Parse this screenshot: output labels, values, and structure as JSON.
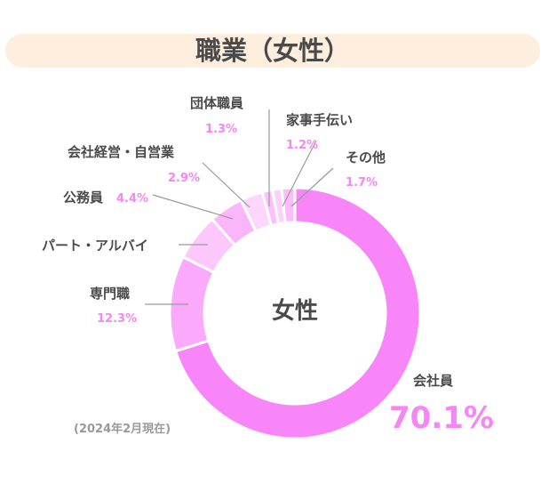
{
  "title": "職業（女性）",
  "center_label": "女性",
  "footnote": "(2024年2月現在)",
  "colors": {
    "title_bg": "#fdeede",
    "text": "#4a4a4a",
    "percent": "#f486f6"
  },
  "chart_data": {
    "type": "pie",
    "title": "職業（女性）",
    "center_label": "女性",
    "segments": [
      {
        "label": "会社員",
        "value": 70.1,
        "value_label": "70.1%",
        "color": "#f986f9"
      },
      {
        "label": "専門職",
        "value": 12.3,
        "value_label": "12.3%",
        "color": "#fbaafb"
      },
      {
        "label": "パート・アルバイ",
        "value": 6.1,
        "value_label": "",
        "color": "#fcc8fc"
      },
      {
        "label": "公務員",
        "value": 4.4,
        "value_label": "4.4%",
        "color": "#fbb6fb"
      },
      {
        "label": "会社経営・自営業",
        "value": 2.9,
        "value_label": "2.9%",
        "color": "#fdd6fd"
      },
      {
        "label": "団体職員",
        "value": 1.3,
        "value_label": "1.3%",
        "color": "#fcc0fc"
      },
      {
        "label": "家事手伝い",
        "value": 1.2,
        "value_label": "1.2%",
        "color": "#fdd0fd"
      },
      {
        "label": "その他",
        "value": 1.7,
        "value_label": "1.7%",
        "color": "#fcbcfc"
      }
    ]
  }
}
